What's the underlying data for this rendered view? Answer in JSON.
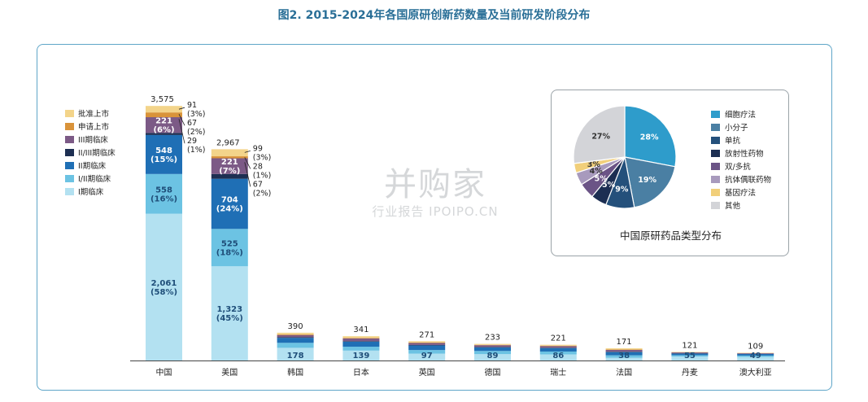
{
  "title": "图2. 2015-2024年各国原研创新药数量及当前研发阶段分布",
  "watermark": {
    "main": "并购家",
    "sub": "行业报告 IPOIPO.CN"
  },
  "legend": [
    {
      "label": "批准上市",
      "color": "#f3d48a"
    },
    {
      "label": "申请上市",
      "color": "#d9933a"
    },
    {
      "label": "III期临床",
      "color": "#7c5a86"
    },
    {
      "label": "II/III期临床",
      "color": "#1d2f52"
    },
    {
      "label": "II期临床",
      "color": "#1f6fb5"
    },
    {
      "label": "I/II期临床",
      "color": "#6cc3e3"
    },
    {
      "label": "I期临床",
      "color": "#b3e1f1"
    }
  ],
  "chart_data": [
    {
      "type": "bar",
      "stacked": true,
      "categories": [
        "中国",
        "美国",
        "韩国",
        "日本",
        "英国",
        "德国",
        "瑞士",
        "法国",
        "丹麦",
        "澳大利亚"
      ],
      "totals": [
        "3,575",
        "2,967",
        "390",
        "341",
        "271",
        "233",
        "221",
        "171",
        "121",
        "109"
      ],
      "total_values": [
        3575,
        2967,
        390,
        341,
        271,
        233,
        221,
        171,
        121,
        109
      ],
      "series": [
        {
          "name": "I期临床",
          "values": [
            2061,
            1323,
            178,
            139,
            97,
            89,
            86,
            38,
            55,
            49
          ]
        },
        {
          "name": "I/II期临床",
          "values": [
            558,
            525,
            70,
            55,
            50,
            45,
            40,
            35,
            20,
            20
          ]
        },
        {
          "name": "II期临床",
          "values": [
            548,
            704,
            70,
            70,
            65,
            50,
            48,
            45,
            22,
            22
          ]
        },
        {
          "name": "II/III期临床",
          "values": [
            29,
            67,
            10,
            8,
            6,
            6,
            6,
            6,
            4,
            3
          ]
        },
        {
          "name": "III期临床",
          "values": [
            221,
            221,
            30,
            38,
            28,
            25,
            22,
            25,
            12,
            8
          ]
        },
        {
          "name": "申请上市",
          "values": [
            67,
            28,
            8,
            8,
            5,
            5,
            5,
            5,
            3,
            2
          ]
        },
        {
          "name": "批准上市",
          "values": [
            91,
            99,
            24,
            23,
            20,
            13,
            14,
            17,
            5,
            5
          ]
        }
      ],
      "bar_labels": {
        "中国": {
          "I期临床": "2,061\n(58%)",
          "I/II期临床": "558\n(16%)",
          "II期临床": "548\n(15%)",
          "III期临床": "221\n(6%)"
        },
        "美国": {
          "I期临床": "1,323\n(45%)",
          "I/II期临床": "525\n(18%)",
          "II期临床": "704\n(24%)",
          "III期临床": "221\n(7%)"
        },
        "韩国": {
          "I期临床": "178"
        },
        "日本": {
          "I期临床": "139"
        },
        "英国": {
          "I期临床": "97"
        },
        "德国": {
          "I期临床": "89"
        },
        "瑞士": {
          "I期临床": "86"
        },
        "法国": {
          "I期临床": "38"
        },
        "丹麦": {
          "I期临床": "55"
        },
        "澳大利亚": {
          "I期临床": "49"
        }
      },
      "callouts": {
        "中国": [
          "91\n(3%)",
          "67\n(2%)",
          "29\n(1%)"
        ],
        "美国": [
          "99\n(3%)",
          "28\n(1%)",
          "67\n(2%)"
        ]
      },
      "ylim": [
        0,
        3700
      ]
    },
    {
      "type": "pie",
      "title": "中国原研药品类型分布",
      "slices": [
        {
          "label": "细胞疗法",
          "value": 28,
          "display": "28%",
          "color": "#2e9ccb"
        },
        {
          "label": "小分子",
          "value": 19,
          "display": "19%",
          "color": "#4a7fa3"
        },
        {
          "label": "单抗",
          "value": 9,
          "display": "9%",
          "color": "#24507b"
        },
        {
          "label": "放射性药物",
          "value": 5,
          "display": "5%",
          "color": "#1c2e52"
        },
        {
          "label": "双/多抗",
          "value": 5,
          "display": "5%",
          "color": "#6b5486"
        },
        {
          "label": "抗体偶联药物",
          "value": 4,
          "display": "4%",
          "color": "#a89abd"
        },
        {
          "label": "基因疗法",
          "value": 3,
          "display": "3%",
          "color": "#f1cf7a"
        },
        {
          "label": "其他",
          "value": 27,
          "display": "27%",
          "color": "#d3d4d8"
        }
      ]
    }
  ]
}
